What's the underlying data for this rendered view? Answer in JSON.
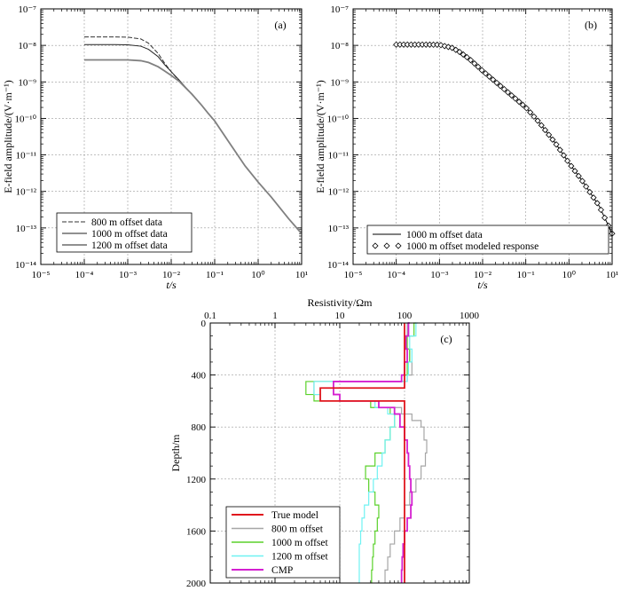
{
  "chart_data": [
    {
      "type": "line",
      "panel_label": "(a)",
      "xlabel": "t/s",
      "ylabel": "E-field amplitude/(V·m⁻¹)",
      "xscale": "log",
      "yscale": "log",
      "xlim": [
        1e-05,
        10
      ],
      "ylim": [
        1e-14,
        1e-07
      ],
      "x_ticks": [
        "10⁻⁵",
        "10⁻⁴",
        "10⁻³",
        "10⁻²",
        "10⁻¹",
        "10⁰",
        "10¹"
      ],
      "y_ticks": [
        "10⁻¹⁴",
        "10⁻¹³",
        "10⁻¹²",
        "10⁻¹¹",
        "10⁻¹⁰",
        "10⁻⁹",
        "10⁻⁸",
        "10⁻⁷"
      ],
      "grid": true,
      "legend_position": "bottom-left",
      "series": [
        {
          "name": "800 m offset data",
          "color": "#333333",
          "style": "dashed",
          "points": [
            [
              0.0001,
              1.7e-08
            ],
            [
              0.0005,
              1.7e-08
            ],
            [
              0.001,
              1.68e-08
            ],
            [
              0.002,
              1.5e-08
            ],
            [
              0.003,
              1.15e-08
            ],
            [
              0.005,
              6e-09
            ],
            [
              0.007,
              3.3e-09
            ],
            [
              0.01,
              1.9e-09
            ],
            [
              0.015,
              1.1e-09
            ],
            [
              0.02,
              7.5e-10
            ],
            [
              0.03,
              4.5e-10
            ],
            [
              0.05,
              2.3e-10
            ],
            [
              0.07,
              1.4e-10
            ],
            [
              0.1,
              8.5e-11
            ],
            [
              0.2,
              2.5e-11
            ],
            [
              0.5,
              5e-12
            ],
            [
              1,
              1.8e-12
            ],
            [
              2,
              7e-13
            ],
            [
              5,
              1.8e-13
            ],
            [
              10,
              7e-14
            ]
          ]
        },
        {
          "name": "1000 m offset data",
          "color": "#222222",
          "style": "solid",
          "points": [
            [
              0.0001,
              1.05e-08
            ],
            [
              0.0005,
              1.05e-08
            ],
            [
              0.001,
              1.04e-08
            ],
            [
              0.002,
              9.5e-09
            ],
            [
              0.003,
              7.8e-09
            ],
            [
              0.005,
              4.9e-09
            ],
            [
              0.007,
              3e-09
            ],
            [
              0.01,
              1.9e-09
            ],
            [
              0.015,
              1.15e-09
            ],
            [
              0.02,
              7.8e-10
            ],
            [
              0.03,
              4.6e-10
            ],
            [
              0.05,
              2.3e-10
            ],
            [
              0.07,
              1.4e-10
            ],
            [
              0.1,
              8.5e-11
            ],
            [
              0.2,
              2.5e-11
            ],
            [
              0.5,
              5e-12
            ],
            [
              1,
              1.8e-12
            ],
            [
              2,
              7e-13
            ],
            [
              5,
              1.8e-13
            ],
            [
              10,
              7e-14
            ]
          ]
        },
        {
          "name": "1200 m offset data",
          "color": "#808080",
          "style": "solid-thick",
          "points": [
            [
              0.0001,
              4e-09
            ],
            [
              0.0005,
              4e-09
            ],
            [
              0.001,
              4e-09
            ],
            [
              0.002,
              3.8e-09
            ],
            [
              0.003,
              3.4e-09
            ],
            [
              0.005,
              2.6e-09
            ],
            [
              0.007,
              2e-09
            ],
            [
              0.01,
              1.5e-09
            ],
            [
              0.015,
              1.05e-09
            ],
            [
              0.02,
              7.5e-10
            ],
            [
              0.03,
              4.6e-10
            ],
            [
              0.05,
              2.3e-10
            ],
            [
              0.07,
              1.4e-10
            ],
            [
              0.1,
              8.5e-11
            ],
            [
              0.2,
              2.5e-11
            ],
            [
              0.5,
              5e-12
            ],
            [
              1,
              1.8e-12
            ],
            [
              2,
              7e-13
            ],
            [
              5,
              1.8e-13
            ],
            [
              10,
              7e-14
            ]
          ]
        }
      ]
    },
    {
      "type": "line",
      "panel_label": "(b)",
      "xlabel": "t/s",
      "ylabel": "E-field amplitude/(V·m⁻¹)",
      "xscale": "log",
      "yscale": "log",
      "xlim": [
        1e-05,
        10
      ],
      "ylim": [
        1e-14,
        1e-07
      ],
      "x_ticks": [
        "10⁻⁵",
        "10⁻⁴",
        "10⁻³",
        "10⁻²",
        "10⁻¹",
        "10⁰",
        "10¹"
      ],
      "y_ticks": [
        "10⁻¹⁴",
        "10⁻¹³",
        "10⁻¹²",
        "10⁻¹¹",
        "10⁻¹⁰",
        "10⁻⁹",
        "10⁻⁸",
        "10⁻⁷"
      ],
      "grid": true,
      "legend_position": "bottom-right",
      "series": [
        {
          "name": "1000 m offset data",
          "color": "#000000",
          "style": "solid",
          "points": [
            [
              0.0001,
              1.05e-08
            ],
            [
              0.0005,
              1.05e-08
            ],
            [
              0.001,
              1.04e-08
            ],
            [
              0.002,
              8.5e-09
            ],
            [
              0.003,
              6.5e-09
            ],
            [
              0.005,
              4.2e-09
            ],
            [
              0.01,
              2e-09
            ],
            [
              0.02,
              1e-09
            ],
            [
              0.05,
              4e-10
            ],
            [
              0.1,
              2e-10
            ],
            [
              0.2,
              8e-11
            ],
            [
              0.5,
              2e-11
            ],
            [
              1,
              6e-12
            ],
            [
              2,
              2e-12
            ],
            [
              5,
              4e-13
            ],
            [
              10,
              7e-14
            ]
          ]
        },
        {
          "name": "1000 m offset modeled response",
          "color": "#000000",
          "style": "diamond-markers",
          "points": [
            [
              0.0001,
              1.05e-08
            ],
            [
              0.0005,
              1.05e-08
            ],
            [
              0.001,
              1.04e-08
            ],
            [
              0.002,
              8.5e-09
            ],
            [
              0.003,
              6.5e-09
            ],
            [
              0.005,
              4.2e-09
            ],
            [
              0.01,
              2e-09
            ],
            [
              0.02,
              1e-09
            ],
            [
              0.05,
              4e-10
            ],
            [
              0.1,
              2e-10
            ],
            [
              0.2,
              8e-11
            ],
            [
              0.5,
              2e-11
            ],
            [
              1,
              6e-12
            ],
            [
              2,
              2e-12
            ],
            [
              5,
              4e-13
            ],
            [
              10,
              7e-14
            ]
          ]
        }
      ]
    },
    {
      "type": "line",
      "panel_label": "(c)",
      "title": "Resistivity/Ωm",
      "xlabel": "Resistivity/Ωm",
      "ylabel": "Depth/m",
      "xscale": "log",
      "xlim": [
        0.1,
        1000
      ],
      "ylim": [
        0,
        2000
      ],
      "y_inverted": true,
      "x_ticks": [
        "0.1",
        "1",
        "10",
        "100",
        "1000"
      ],
      "y_ticks": [
        "0",
        "400",
        "800",
        "1200",
        "1600",
        "2000"
      ],
      "grid": true,
      "legend_position": "bottom-left",
      "series": [
        {
          "name": "True model",
          "color": "#e0161d",
          "style": "step-thick",
          "points": [
            [
              100,
              0
            ],
            [
              100,
              500
            ],
            [
              5,
              500
            ],
            [
              5,
              600
            ],
            [
              100,
              600
            ],
            [
              100,
              2000
            ]
          ]
        },
        {
          "name": "800 m  offset",
          "color": "#a6a6a6",
          "style": "step",
          "points": [
            [
              110,
              0
            ],
            [
              110,
              100
            ],
            [
              100,
              200
            ],
            [
              120,
              300
            ],
            [
              130,
              400
            ],
            [
              110,
              450
            ],
            [
              4,
              550
            ],
            [
              5,
              600
            ],
            [
              40,
              650
            ],
            [
              90,
              700
            ],
            [
              130,
              750
            ],
            [
              180,
              800
            ],
            [
              200,
              900
            ],
            [
              220,
              1000
            ],
            [
              210,
              1100
            ],
            [
              180,
              1200
            ],
            [
              150,
              1300
            ],
            [
              120,
              1400
            ],
            [
              100,
              1500
            ],
            [
              85,
              1600
            ],
            [
              70,
              1700
            ],
            [
              60,
              1800
            ],
            [
              55,
              1900
            ],
            [
              50,
              2000
            ]
          ]
        },
        {
          "name": "1000 m offset",
          "color": "#5ad12a",
          "style": "step",
          "points": [
            [
              150,
              0
            ],
            [
              140,
              100
            ],
            [
              110,
              200
            ],
            [
              120,
              300
            ],
            [
              110,
              400
            ],
            [
              100,
              450
            ],
            [
              3,
              550
            ],
            [
              4,
              600
            ],
            [
              30,
              650
            ],
            [
              60,
              700
            ],
            [
              70,
              800
            ],
            [
              60,
              900
            ],
            [
              50,
              1000
            ],
            [
              35,
              1100
            ],
            [
              25,
              1200
            ],
            [
              28,
              1300
            ],
            [
              35,
              1400
            ],
            [
              40,
              1500
            ],
            [
              38,
              1600
            ],
            [
              35,
              1700
            ],
            [
              33,
              1800
            ],
            [
              32,
              1900
            ],
            [
              31,
              2000
            ]
          ]
        },
        {
          "name": "1200 m offset",
          "color": "#6ff2f2",
          "style": "step",
          "points": [
            [
              160,
              0
            ],
            [
              150,
              100
            ],
            [
              120,
              200
            ],
            [
              130,
              300
            ],
            [
              115,
              400
            ],
            [
              110,
              450
            ],
            [
              4,
              550
            ],
            [
              5,
              600
            ],
            [
              35,
              650
            ],
            [
              55,
              700
            ],
            [
              70,
              800
            ],
            [
              60,
              900
            ],
            [
              50,
              1000
            ],
            [
              45,
              1100
            ],
            [
              38,
              1200
            ],
            [
              33,
              1300
            ],
            [
              28,
              1400
            ],
            [
              24,
              1500
            ],
            [
              22,
              1600
            ],
            [
              21,
              1700
            ],
            [
              20,
              1800
            ],
            [
              20,
              1900
            ],
            [
              20,
              2000
            ]
          ]
        },
        {
          "name": "CMP",
          "color": "#d41fd0",
          "style": "step-thick",
          "points": [
            [
              120,
              0
            ],
            [
              115,
              100
            ],
            [
              105,
              200
            ],
            [
              110,
              300
            ],
            [
              100,
              400
            ],
            [
              90,
              450
            ],
            [
              8,
              550
            ],
            [
              10,
              600
            ],
            [
              40,
              650
            ],
            [
              70,
              700
            ],
            [
              85,
              800
            ],
            [
              100,
              900
            ],
            [
              110,
              1000
            ],
            [
              115,
              1100
            ],
            [
              120,
              1200
            ],
            [
              125,
              1300
            ],
            [
              130,
              1400
            ],
            [
              125,
              1500
            ],
            [
              110,
              1600
            ],
            [
              100,
              1700
            ],
            [
              95,
              1800
            ],
            [
              92,
              1900
            ],
            [
              90,
              2000
            ]
          ]
        }
      ]
    }
  ]
}
